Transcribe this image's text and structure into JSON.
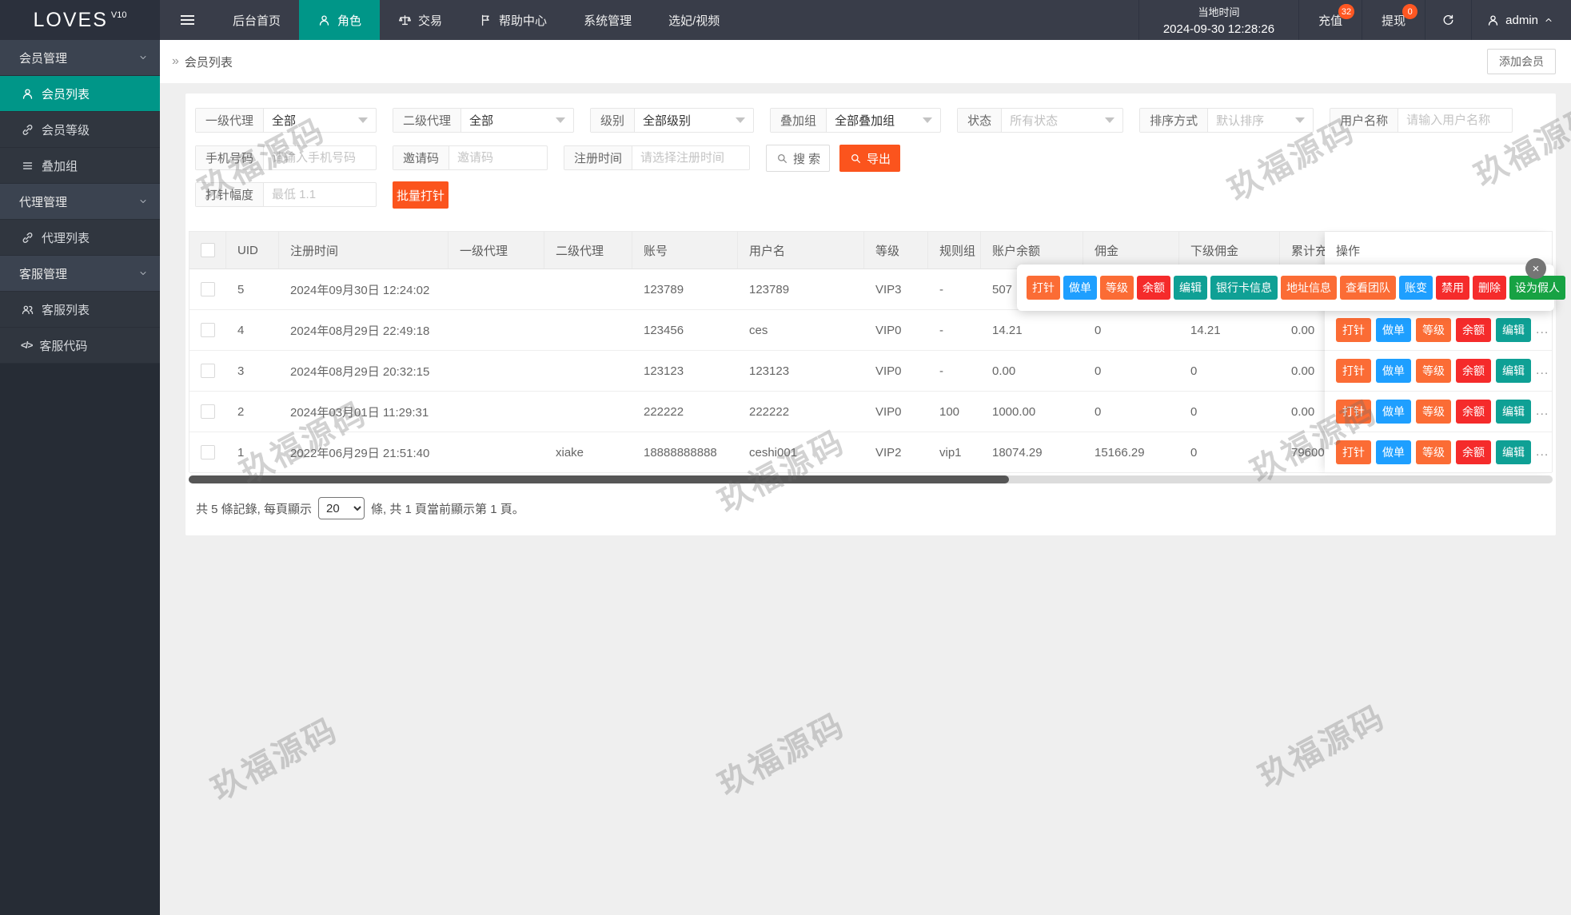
{
  "topbar": {
    "logo": "LOVES",
    "logo_version": "V10",
    "tabs": [
      {
        "label": "后台首页",
        "icon": "",
        "active": false
      },
      {
        "label": "角色",
        "icon": "person",
        "active": true
      },
      {
        "label": "交易",
        "icon": "scales",
        "active": false
      },
      {
        "label": "帮助中心",
        "icon": "flag",
        "active": false
      },
      {
        "label": "系统管理",
        "icon": "",
        "active": false
      },
      {
        "label": "选妃/视频",
        "icon": "",
        "active": false
      }
    ],
    "time_label": "当地时间",
    "time_value": "2024-09-30 12:28:26",
    "quick_items": [
      {
        "label": "充值",
        "badge": "32"
      },
      {
        "label": "提现",
        "badge": "0"
      }
    ],
    "user": {
      "name": "admin"
    }
  },
  "sidebar": {
    "groups": [
      {
        "label": "会员管理",
        "items": [
          {
            "label": "会员列表",
            "icon": "person",
            "active": true
          },
          {
            "label": "会员等级",
            "icon": "link",
            "active": false
          },
          {
            "label": "叠加组",
            "icon": "list",
            "active": false
          }
        ]
      },
      {
        "label": "代理管理",
        "items": [
          {
            "label": "代理列表",
            "icon": "link",
            "active": false
          }
        ]
      },
      {
        "label": "客服管理",
        "items": [
          {
            "label": "客服列表",
            "icon": "people",
            "active": false
          },
          {
            "label": "客服代码",
            "icon": "code",
            "active": false
          }
        ]
      }
    ]
  },
  "breadcrumb": {
    "arrow": "»",
    "title": "会员列表"
  },
  "add_member_button": "添加会员",
  "filters": {
    "selects": [
      {
        "label": "一级代理",
        "value": "全部",
        "muted": false
      },
      {
        "label": "二级代理",
        "value": "全部",
        "muted": false
      },
      {
        "label": "级别",
        "value": "全部级别",
        "muted": false
      },
      {
        "label": "叠加组",
        "value": "全部叠加组",
        "muted": false
      },
      {
        "label": "状态",
        "value": "所有状态",
        "muted": true
      },
      {
        "label": "排序方式",
        "value": "默认排序",
        "muted": true
      }
    ],
    "username": {
      "label": "用户名称",
      "placeholder": "请输入用户名称"
    },
    "inputs2": [
      {
        "label": "手机号码",
        "placeholder": "请输入手机号码"
      },
      {
        "label": "邀请码",
        "placeholder": "邀请码"
      },
      {
        "label": "注册时间",
        "placeholder": "请选择注册时间"
      }
    ],
    "search_button": "搜 索",
    "export_button": "导出",
    "needle": {
      "label": "打针幅度",
      "placeholder": "最低 1.1"
    },
    "batch_button": "批量打针"
  },
  "table": {
    "headers": [
      "UID",
      "注册时间",
      "一级代理",
      "二级代理",
      "账号",
      "用户名",
      "等级",
      "规则组",
      "账户余额",
      "佣金",
      "下级佣金",
      "累计充",
      "操作"
    ],
    "rows": [
      {
        "cells": [
          "5",
          "2024年09月30日 12:24:02",
          "",
          "",
          "123789",
          "123789",
          "VIP3",
          "-",
          "507",
          "",
          "",
          ""
        ],
        "actions": false
      },
      {
        "cells": [
          "4",
          "2024年08月29日 22:49:18",
          "",
          "",
          "123456",
          "ces",
          "VIP0",
          "-",
          "14.21",
          "0",
          "14.21",
          "0.00"
        ],
        "actions": true
      },
      {
        "cells": [
          "3",
          "2024年08月29日 20:32:15",
          "",
          "",
          "123123",
          "123123",
          "VIP0",
          "-",
          "0.00",
          "0",
          "0",
          "0.00"
        ],
        "actions": true
      },
      {
        "cells": [
          "2",
          "2024年03月01日 11:29:31",
          "",
          "",
          "222222",
          "222222",
          "VIP0",
          "100",
          "1000.00",
          "0",
          "0",
          "0.00"
        ],
        "actions": true
      },
      {
        "cells": [
          "1",
          "2022年06月29日 21:51:40",
          "",
          "xiake",
          "18888888888",
          "ceshi001",
          "VIP2",
          "vip1",
          "18074.29",
          "15166.29",
          "0",
          "79600"
        ],
        "actions": true
      }
    ],
    "row_actions": [
      {
        "label": "打针",
        "color": "orange"
      },
      {
        "label": "做单",
        "color": "blue"
      },
      {
        "label": "等级",
        "color": "orange"
      },
      {
        "label": "余额",
        "color": "red"
      },
      {
        "label": "编辑",
        "color": "teal"
      }
    ],
    "more": "..."
  },
  "popup": {
    "close": "×",
    "buttons": [
      {
        "label": "打针",
        "color": "orange"
      },
      {
        "label": "做单",
        "color": "blue"
      },
      {
        "label": "等级",
        "color": "orange"
      },
      {
        "label": "余额",
        "color": "red"
      },
      {
        "label": "编辑",
        "color": "teal"
      },
      {
        "label": "银行卡信息",
        "color": "teal"
      },
      {
        "label": "地址信息",
        "color": "orange"
      },
      {
        "label": "查看团队",
        "color": "orange"
      },
      {
        "label": "账变",
        "color": "blue"
      },
      {
        "label": "禁用",
        "color": "red"
      },
      {
        "label": "删除",
        "color": "red"
      },
      {
        "label": "设为假人",
        "color": "green"
      }
    ]
  },
  "pagination": {
    "prefix": "共 5 條記錄, 每頁顯示",
    "page_size": "20",
    "suffix": "條, 共 1 頁當前顯示第 1 頁。"
  },
  "watermark": "玖福源码",
  "colors": {
    "accent": "#009688",
    "orange": "#FB541D",
    "orange_soft": "#FB6C35",
    "blue": "#1E9FFF",
    "red": "#F52B2B",
    "teal": "#0FA095",
    "green": "#17A243",
    "badge": "#FF5722"
  }
}
